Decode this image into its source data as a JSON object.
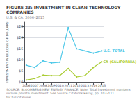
{
  "chart_data": {
    "type": "line",
    "title": "FIGURE 23: INVESTMENT IN CLEAN TECHNOLOGY COMPANIES",
    "subtitle": "U.S. & CA, 2006–2015",
    "ylabel": "INVESTMENT IN BILLIONS OF DOLLARS",
    "note": "SOURCE: BLOOMBERG NEW ENERGY FINANCE. Note: Total investment numbers include private investment. See Source Citations Essay, pp. 107–111 for full citations.",
    "x": [
      2006,
      2007,
      2008,
      2009,
      2010,
      2011,
      2012,
      2013,
      2014,
      2015
    ],
    "series": [
      {
        "name": "U.S. TOTAL",
        "color": "#4DC8E8",
        "marker": "circle",
        "values": [
          7.5,
          6.5,
          9.5,
          8.5,
          8.8,
          24.5,
          15.0,
          14.0,
          13.0,
          14.0
        ]
      },
      {
        "name": "CA (CALIFORNIA)",
        "color": "#AACC33",
        "marker": "circle",
        "values": [
          0.8,
          1.5,
          3.0,
          2.8,
          2.8,
          6.0,
          2.2,
          2.8,
          6.5,
          9.0
        ]
      }
    ],
    "xlim": [
      2005.8,
      2015.3
    ],
    "xticks": [
      2006,
      2007,
      2008,
      2009,
      2010,
      2011,
      2012,
      2013,
      2014,
      2015
    ],
    "ylim": [
      0,
      27
    ],
    "yticks": [
      {
        "value": 0,
        "label": "$0"
      },
      {
        "value": 5,
        "label": "$5"
      },
      {
        "value": 10,
        "label": "$10"
      },
      {
        "value": 15,
        "label": "$15"
      },
      {
        "value": 20,
        "label": "$20"
      },
      {
        "value": 25,
        "label": "$25"
      }
    ],
    "grid": true
  }
}
